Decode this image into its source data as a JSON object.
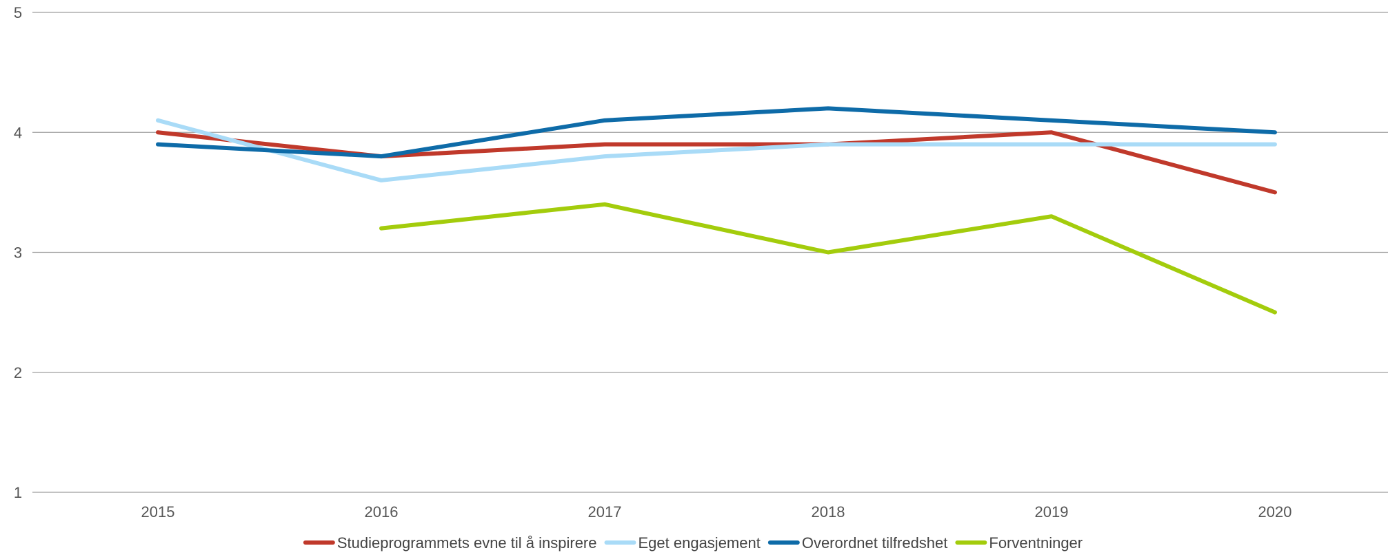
{
  "chart_data": {
    "type": "line",
    "title": "",
    "xlabel": "",
    "ylabel": "",
    "categories": [
      "2015",
      "2016",
      "2017",
      "2018",
      "2019",
      "2020"
    ],
    "ylim": [
      1,
      5
    ],
    "yticks": [
      "1",
      "2",
      "3",
      "4",
      "5"
    ],
    "grid": true,
    "legend_position": "bottom",
    "series": [
      {
        "name": "Studieprogrammets evne til å inspirere",
        "color": "#c0392b",
        "values": [
          4.0,
          3.8,
          3.9,
          3.9,
          4.0,
          3.5
        ]
      },
      {
        "name": "Eget engasjement",
        "color": "#a9dbf7",
        "values": [
          4.1,
          3.6,
          3.8,
          3.9,
          3.9,
          3.9
        ]
      },
      {
        "name": "Overordnet tilfredshet",
        "color": "#0e6ba8",
        "values": [
          3.9,
          3.8,
          4.1,
          4.2,
          4.1,
          4.0
        ]
      },
      {
        "name": "Forventninger",
        "color": "#a3cc0c",
        "values": [
          null,
          3.2,
          3.4,
          3.0,
          3.3,
          2.5
        ]
      }
    ]
  }
}
